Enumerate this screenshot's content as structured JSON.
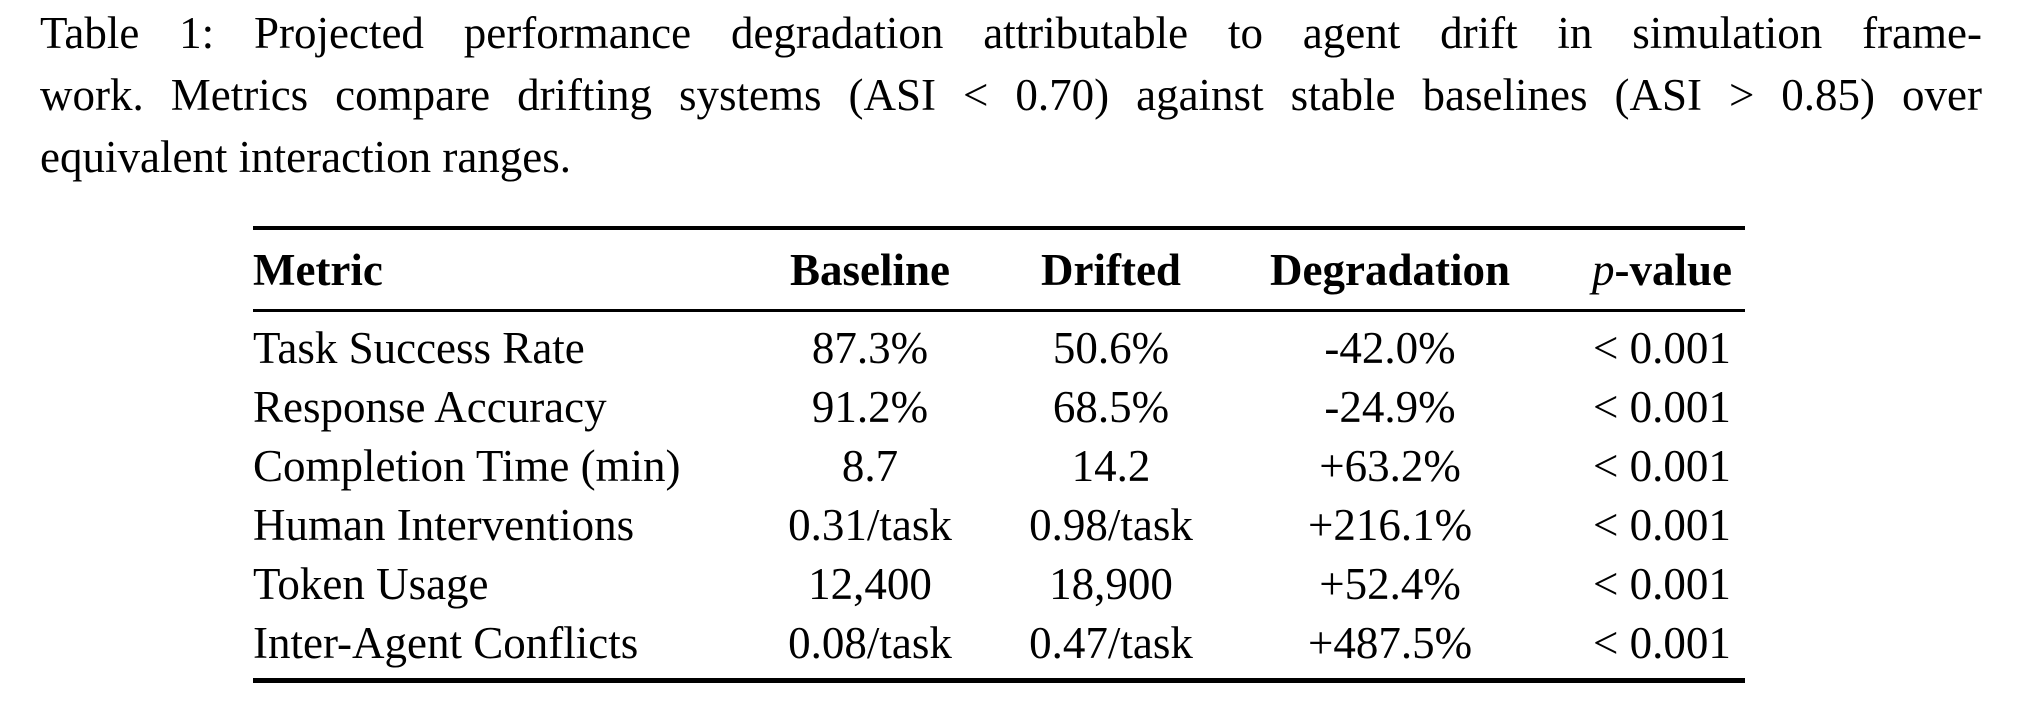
{
  "colors": {
    "text": "#000000",
    "background": "#ffffff"
  },
  "caption": {
    "lines": [
      "Table 1: Projected performance degradation attributable to agent drift in simulation frame-",
      "work. Metrics compare drifting systems (ASI < 0.70) against stable baselines (ASI > 0.85) over",
      "equivalent interaction ranges."
    ],
    "full_text": "Table 1: Projected performance degradation attributable to agent drift in simulation framework. Metrics compare drifting systems (ASI < 0.70) against stable baselines (ASI > 0.85) over equivalent interaction ranges."
  },
  "table": {
    "columns": [
      {
        "label": "Metric"
      },
      {
        "label": "Baseline"
      },
      {
        "label": "Drifted"
      },
      {
        "label": "Degradation"
      },
      {
        "label": "-value",
        "italic_prefix": "p"
      }
    ],
    "rows": [
      [
        "Task Success Rate",
        "87.3%",
        "50.6%",
        "-42.0%",
        "< 0.001"
      ],
      [
        "Response Accuracy",
        "91.2%",
        "68.5%",
        "-24.9%",
        "< 0.001"
      ],
      [
        "Completion Time (min)",
        "8.7",
        "14.2",
        "+63.2%",
        "< 0.001"
      ],
      [
        "Human Interventions",
        "0.31/task",
        "0.98/task",
        "+216.1%",
        "< 0.001"
      ],
      [
        "Token Usage",
        "12,400",
        "18,900",
        "+52.4%",
        "< 0.001"
      ],
      [
        "Inter-Agent Conflicts",
        "0.08/task",
        "0.47/task",
        "+487.5%",
        "< 0.001"
      ]
    ]
  }
}
